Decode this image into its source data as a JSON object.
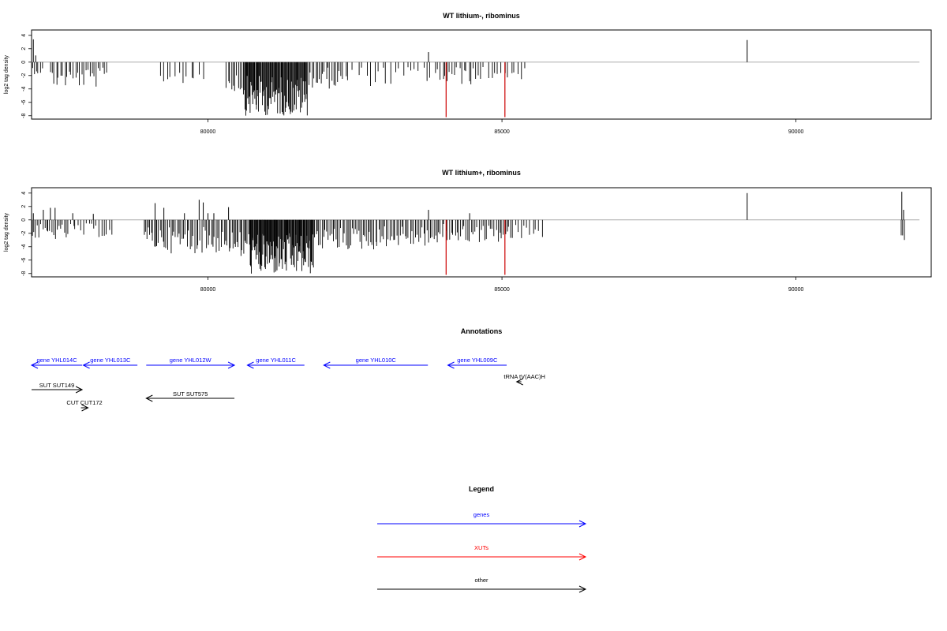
{
  "chart_data": [
    {
      "type": "bar",
      "title": "WT lithium-, ribominus",
      "xlabel": "",
      "ylabel": "log2 tag density",
      "xlim": [
        77000,
        92300
      ],
      "ylim": [
        -8.5,
        4.8
      ],
      "xticks": [
        80000,
        85000,
        90000
      ],
      "yticks": [
        4,
        2,
        0,
        -2,
        -4,
        -6,
        -8
      ],
      "xtick_labels": [
        "80000",
        "85000",
        "90000"
      ],
      "ytick_labels": [
        "4",
        "2",
        "0",
        "-2",
        "-4",
        "-6",
        "-8"
      ],
      "baseline": {
        "from": 77000,
        "to": 92100,
        "color": "#aaaaaa"
      },
      "highlight_color": "#cc0000",
      "bar_color": "#000000",
      "highlights": [
        {
          "x": 84050,
          "y": -8.2
        },
        {
          "x": 85050,
          "y": -8.2
        }
      ],
      "spikes": [
        {
          "x": 77030,
          "y": 3.4
        },
        {
          "x": 77070,
          "y": 1.0
        },
        {
          "x": 83750,
          "y": 1.5
        },
        {
          "x": 89170,
          "y": 3.3
        }
      ],
      "segments": [
        {
          "from": 77000,
          "to": 77200,
          "ymin": -1.8,
          "ymax": -0.4,
          "count": 6
        },
        {
          "from": 77300,
          "to": 78300,
          "ymin": -3.8,
          "ymax": -0.8,
          "count": 28
        },
        {
          "from": 79150,
          "to": 79950,
          "ymin": -3.2,
          "ymax": -0.8,
          "count": 12
        },
        {
          "from": 80300,
          "to": 80600,
          "ymin": -4.5,
          "ymax": -1.0,
          "count": 10
        },
        {
          "from": 80600,
          "to": 81700,
          "ymin": -8.0,
          "ymax": -2.0,
          "count": 90
        },
        {
          "from": 81700,
          "to": 82300,
          "ymin": -4.0,
          "ymax": -0.8,
          "count": 20
        },
        {
          "from": 82300,
          "to": 83300,
          "ymin": -3.6,
          "ymax": -0.6,
          "count": 14
        },
        {
          "from": 83300,
          "to": 83900,
          "ymin": -3.0,
          "ymax": -0.5,
          "count": 9
        },
        {
          "from": 83900,
          "to": 84700,
          "ymin": -3.4,
          "ymax": -0.6,
          "count": 20
        },
        {
          "from": 84750,
          "to": 85400,
          "ymin": -2.6,
          "ymax": -0.6,
          "count": 12
        }
      ]
    },
    {
      "type": "bar",
      "title": "WT lithium+, ribominus",
      "xlabel": "",
      "ylabel": "log2 tag density",
      "xlim": [
        77000,
        92300
      ],
      "ylim": [
        -8.5,
        4.8
      ],
      "xticks": [
        80000,
        85000,
        90000
      ],
      "yticks": [
        4,
        2,
        0,
        -2,
        -4,
        -6,
        -8
      ],
      "xtick_labels": [
        "80000",
        "85000",
        "90000"
      ],
      "ytick_labels": [
        "4",
        "2",
        "0",
        "-2",
        "-4",
        "-6",
        "-8"
      ],
      "baseline": {
        "from": 77000,
        "to": 92100,
        "color": "#aaaaaa"
      },
      "highlight_color": "#cc0000",
      "bar_color": "#000000",
      "highlights": [
        {
          "x": 84050,
          "y": -8.2
        },
        {
          "x": 85050,
          "y": -8.2
        }
      ],
      "spikes": [
        {
          "x": 77030,
          "y": 1.0
        },
        {
          "x": 77200,
          "y": 1.5
        },
        {
          "x": 77320,
          "y": 1.8
        },
        {
          "x": 77400,
          "y": 1.8
        },
        {
          "x": 77700,
          "y": 1.0
        },
        {
          "x": 78050,
          "y": 0.9
        },
        {
          "x": 79100,
          "y": 2.5
        },
        {
          "x": 79250,
          "y": 1.8
        },
        {
          "x": 79600,
          "y": 1.0
        },
        {
          "x": 79850,
          "y": 3.0
        },
        {
          "x": 79920,
          "y": 2.6
        },
        {
          "x": 80000,
          "y": 1.0
        },
        {
          "x": 80100,
          "y": 1.0
        },
        {
          "x": 80350,
          "y": 1.9
        },
        {
          "x": 83750,
          "y": 1.5
        },
        {
          "x": 84450,
          "y": 1.0
        },
        {
          "x": 89170,
          "y": 4.0
        },
        {
          "x": 91800,
          "y": 4.2
        },
        {
          "x": 91830,
          "y": 1.5
        }
      ],
      "segments": [
        {
          "from": 77000,
          "to": 77600,
          "ymin": -3.0,
          "ymax": -0.6,
          "count": 20
        },
        {
          "from": 77600,
          "to": 78400,
          "ymin": -2.6,
          "ymax": -0.5,
          "count": 18
        },
        {
          "from": 78900,
          "to": 79300,
          "ymin": -4.5,
          "ymax": -1.0,
          "count": 16
        },
        {
          "from": 79300,
          "to": 80400,
          "ymin": -5.0,
          "ymax": -1.0,
          "count": 40
        },
        {
          "from": 80400,
          "to": 80700,
          "ymin": -6.0,
          "ymax": -1.5,
          "count": 14
        },
        {
          "from": 80700,
          "to": 81800,
          "ymin": -8.2,
          "ymax": -2.0,
          "count": 100
        },
        {
          "from": 81800,
          "to": 83000,
          "ymin": -4.5,
          "ymax": -1.0,
          "count": 45
        },
        {
          "from": 83000,
          "to": 84000,
          "ymin": -4.0,
          "ymax": -0.8,
          "count": 35
        },
        {
          "from": 84000,
          "to": 85200,
          "ymin": -3.4,
          "ymax": -0.6,
          "count": 38
        },
        {
          "from": 85200,
          "to": 85700,
          "ymin": -3.0,
          "ymax": -0.6,
          "count": 10
        },
        {
          "from": 91780,
          "to": 91870,
          "ymin": -3.2,
          "ymax": -1.5,
          "count": 3
        }
      ]
    }
  ],
  "annotations": {
    "title": "Annotations",
    "features": [
      {
        "name": "gene YHL014C",
        "label": "gene YHL014C",
        "category": "gene",
        "start": 77000,
        "end": 77860,
        "strand": "-",
        "row": 0
      },
      {
        "name": "gene YHL013C",
        "label": "gene YHL013C",
        "category": "gene",
        "start": 77880,
        "end": 78800,
        "strand": "-",
        "row": 0
      },
      {
        "name": "gene YHL012W",
        "label": "gene YHL012W",
        "category": "gene",
        "start": 78950,
        "end": 80450,
        "strand": "+",
        "row": 0
      },
      {
        "name": "gene YHL011C",
        "label": "gene YHL011C",
        "category": "gene",
        "start": 80670,
        "end": 81640,
        "strand": "-",
        "row": 0
      },
      {
        "name": "gene YHL010C",
        "label": "gene YHL010C",
        "category": "gene",
        "start": 81970,
        "end": 83740,
        "strand": "-",
        "row": 0
      },
      {
        "name": "gene YHL009C",
        "label": "gene YHL009C",
        "category": "gene",
        "start": 84080,
        "end": 85080,
        "strand": "-",
        "row": 0
      },
      {
        "name": "tRNA tV(AAC)H",
        "label": "tRNA tV(AAC)H",
        "category": "other",
        "start": 85250,
        "end": 85330,
        "strand": "-",
        "row": 1
      },
      {
        "name": "SUT SUT149",
        "label": "SUT SUT149",
        "category": "other",
        "start": 77000,
        "end": 77860,
        "strand": "+",
        "row": 2
      },
      {
        "name": "SUT SUT575",
        "label": "SUT SUT575",
        "category": "other",
        "start": 78950,
        "end": 80450,
        "strand": "-",
        "row": 3
      },
      {
        "name": "CUT CUT172",
        "label": "CUT CUT172",
        "category": "other",
        "start": 77840,
        "end": 77960,
        "strand": "+",
        "row": 4
      }
    ]
  },
  "legend": {
    "title": "Legend",
    "items": [
      {
        "label": "genes",
        "color": "#0000ff"
      },
      {
        "label": "XUTs",
        "color": "#ff0000"
      },
      {
        "label": "other",
        "color": "#000000"
      }
    ]
  },
  "colors": {
    "gene": "#0000ff",
    "other": "#000000",
    "xut": "#ff0000"
  }
}
